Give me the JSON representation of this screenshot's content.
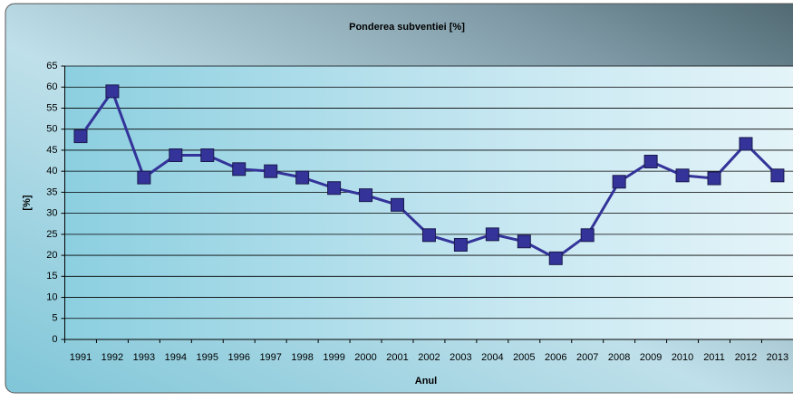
{
  "chart_data": {
    "type": "line",
    "title": "Ponderea subventiei [%]",
    "xlabel": "Anul",
    "ylabel": "[%]",
    "categories": [
      "1991",
      "1992",
      "1993",
      "1994",
      "1995",
      "1996",
      "1997",
      "1998",
      "1999",
      "2000",
      "2001",
      "2002",
      "2003",
      "2004",
      "2005",
      "2006",
      "2007",
      "2008",
      "2009",
      "2010",
      "2011",
      "2012",
      "2013"
    ],
    "values": [
      48.3,
      59,
      38.5,
      43.8,
      43.8,
      40.5,
      40,
      38.5,
      36,
      34.3,
      32,
      24.8,
      22.5,
      25,
      23.3,
      19.3,
      24.8,
      37.5,
      42.3,
      39,
      38.3,
      46.5,
      39
    ],
    "color": "#333399",
    "ylim": [
      0,
      65
    ],
    "yticks": [
      0,
      5,
      10,
      15,
      20,
      25,
      30,
      35,
      40,
      45,
      50,
      55,
      60,
      65
    ],
    "grid": true
  }
}
